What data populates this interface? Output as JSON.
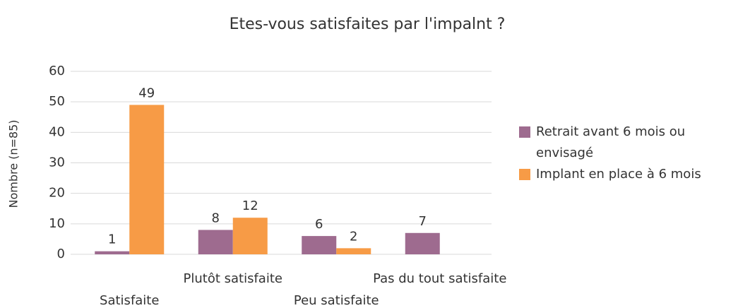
{
  "chart_data": {
    "type": "bar",
    "title": "Etes-vous satisfaites par l'impalnt ?",
    "y_label": "Nombre (n=85)",
    "categories": [
      "Satisfaite",
      "Plutôt satisfaite",
      "Peu satisfaite",
      "Pas du tout satisfaite"
    ],
    "series": [
      {
        "name": "Retrait avant 6 mois ou envisagé",
        "color": "#9e6b8f",
        "values": [
          1,
          8,
          6,
          7
        ]
      },
      {
        "name": "Implant en place à 6 mois",
        "color": "#f79b46",
        "values": [
          49,
          12,
          2,
          null
        ]
      }
    ],
    "ylim": [
      0,
      60
    ],
    "yticks": [
      0,
      10,
      20,
      30,
      40,
      50,
      60
    ],
    "grid": true,
    "legend": "right"
  }
}
